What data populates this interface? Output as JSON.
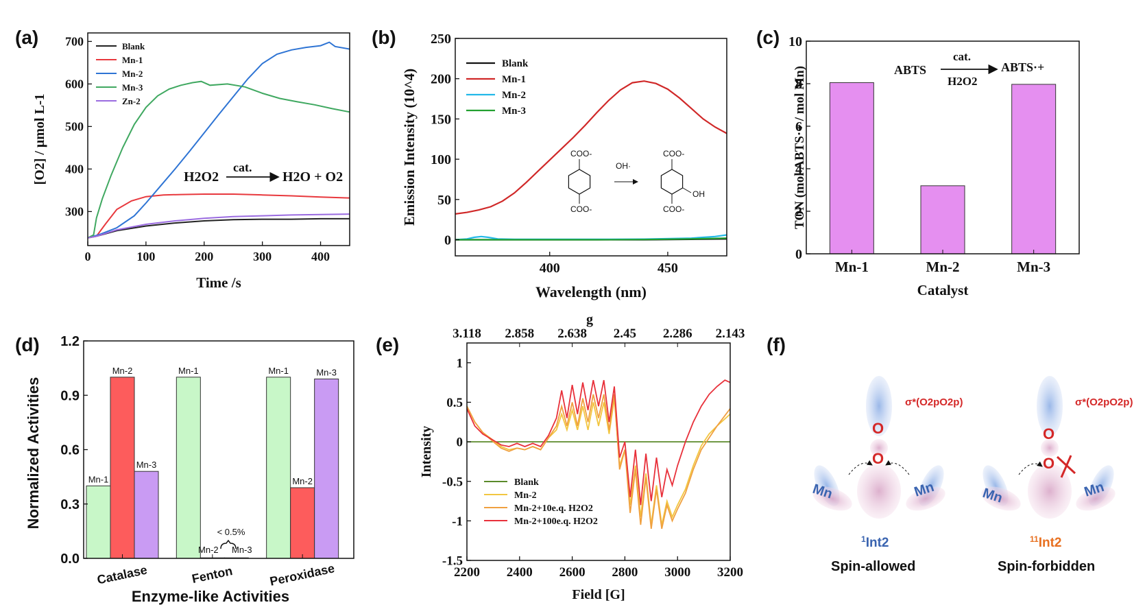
{
  "chart_data": [
    {
      "panel": "(a)",
      "type": "line",
      "xlabel": "Time /s",
      "ylabel": "[O2] / μmol L-1",
      "xlim": [
        0,
        450
      ],
      "ylim": [
        220,
        720
      ],
      "xticks": [
        0,
        100,
        200,
        300,
        400
      ],
      "yticks": [
        300,
        400,
        500,
        600,
        700
      ],
      "equation": {
        "left": "H2O2",
        "cat": "cat.",
        "right": "H2O + O2"
      },
      "legend_position": "top-left",
      "series": [
        {
          "name": "Blank",
          "color": "#222222",
          "x": [
            0,
            15,
            50,
            100,
            150,
            200,
            250,
            300,
            350,
            400,
            450
          ],
          "y": [
            238,
            242,
            255,
            266,
            273,
            278,
            281,
            282,
            282,
            283,
            283
          ]
        },
        {
          "name": "Mn-1",
          "color": "#e8383d",
          "x": [
            0,
            15,
            30,
            50,
            75,
            100,
            130,
            160,
            200,
            250,
            300,
            350,
            400,
            450
          ],
          "y": [
            238,
            242,
            270,
            305,
            325,
            335,
            339,
            340,
            341,
            341,
            339,
            337,
            334,
            332
          ]
        },
        {
          "name": "Mn-2",
          "color": "#2e74d4",
          "x": [
            0,
            20,
            50,
            80,
            100,
            125,
            150,
            175,
            200,
            225,
            250,
            275,
            300,
            325,
            350,
            375,
            400,
            415,
            425,
            450
          ],
          "y": [
            238,
            246,
            262,
            290,
            320,
            360,
            400,
            442,
            485,
            528,
            570,
            612,
            648,
            670,
            680,
            686,
            690,
            698,
            688,
            682
          ]
        },
        {
          "name": "Mn-3",
          "color": "#3fa860",
          "x": [
            0,
            10,
            15,
            25,
            40,
            60,
            80,
            100,
            120,
            140,
            160,
            180,
            195,
            210,
            240,
            270,
            300,
            330,
            360,
            390,
            420,
            450
          ],
          "y": [
            238,
            245,
            285,
            330,
            385,
            450,
            505,
            545,
            572,
            588,
            597,
            603,
            606,
            597,
            600,
            593,
            578,
            566,
            558,
            551,
            542,
            534
          ]
        },
        {
          "name": "Zn-2",
          "color": "#9a6be0",
          "x": [
            0,
            15,
            50,
            100,
            150,
            200,
            250,
            300,
            350,
            400,
            450
          ],
          "y": [
            238,
            242,
            257,
            270,
            278,
            284,
            288,
            290,
            292,
            293,
            294
          ]
        }
      ]
    },
    {
      "panel": "(b)",
      "type": "line",
      "xlabel": "Wavelength (nm)",
      "ylabel": "Emission Intensity (10^4)",
      "xlim": [
        360,
        475
      ],
      "ylim": [
        -20,
        250
      ],
      "xticks": [
        400,
        450
      ],
      "yticks": [
        0,
        50,
        100,
        150,
        200,
        250
      ],
      "legend_position": "top-left",
      "reaction_labels": {
        "top_group": "COO-",
        "bottom_group": "COO-",
        "reagent": "OH·",
        "product_top": "COO-",
        "product_bottom": "COO-",
        "product_side": "OH"
      },
      "series": [
        {
          "name": "Blank",
          "color": "#111111",
          "x": [
            360,
            380,
            400,
            420,
            440,
            460,
            475
          ],
          "y": [
            0,
            0,
            0,
            0,
            0,
            0.5,
            1
          ]
        },
        {
          "name": "Mn-1",
          "color": "#d02828",
          "x": [
            360,
            365,
            370,
            375,
            380,
            385,
            390,
            395,
            400,
            405,
            410,
            415,
            420,
            425,
            430,
            435,
            440,
            445,
            450,
            455,
            460,
            465,
            470,
            475
          ],
          "y": [
            32,
            34,
            37,
            41,
            48,
            58,
            71,
            85,
            99,
            113,
            127,
            142,
            158,
            173,
            186,
            195,
            197,
            194,
            187,
            176,
            163,
            150,
            140,
            132
          ]
        },
        {
          "name": "Mn-2",
          "color": "#22b8e8",
          "x": [
            360,
            365,
            368,
            371,
            374,
            378,
            385,
            400,
            420,
            440,
            460,
            470,
            475
          ],
          "y": [
            0,
            1,
            3,
            4,
            3,
            1,
            0.5,
            0.5,
            0.5,
            0.8,
            2,
            4,
            6
          ]
        },
        {
          "name": "Mn-3",
          "color": "#22a030",
          "x": [
            360,
            380,
            400,
            420,
            440,
            460,
            475
          ],
          "y": [
            0,
            0,
            0,
            0,
            0.3,
            1,
            2
          ]
        }
      ]
    },
    {
      "panel": "(c)",
      "type": "bar",
      "xlabel": "Catalyst",
      "ylabel": "TON (mol ABTS·+ / mol Mn)",
      "ylim": [
        0,
        10
      ],
      "yticks": [
        0,
        2,
        4,
        6,
        8,
        10
      ],
      "categories": [
        "Mn-1",
        "Mn-2",
        "Mn-3"
      ],
      "values": [
        8.05,
        3.2,
        7.97
      ],
      "bar_color": "#e58ff0",
      "equation": {
        "left": "ABTS",
        "cat": "cat.",
        "reagent": "H2O2",
        "right": "ABTS·+"
      }
    },
    {
      "panel": "(d)",
      "type": "bar",
      "xlabel": "Enzyme-like Activities",
      "ylabel": "Normalized Activities",
      "ylim": [
        0,
        1.2
      ],
      "yticks": [
        "0.0",
        "0.3",
        "0.6",
        "0.9",
        "1.2"
      ],
      "categories": [
        "Catalase",
        "Fenton",
        "Peroxidase"
      ],
      "series": [
        {
          "name": "Mn-1",
          "color": "#c8f7c8",
          "values": [
            0.4,
            1.0,
            1.0
          ]
        },
        {
          "name": "Mn-2",
          "color": "#fd5c5c",
          "values": [
            1.0,
            0.003,
            0.39
          ]
        },
        {
          "name": "Mn-3",
          "color": "#c99bf3",
          "values": [
            0.48,
            0.003,
            0.99
          ]
        }
      ],
      "annotation": "< 0.5%"
    },
    {
      "panel": "(e)",
      "type": "line",
      "xlabel": "Field [G]",
      "ylabel": "Intensity",
      "top_axis_label": "g",
      "top_ticks": [
        "3.118",
        "2.858",
        "2.638",
        "2.45",
        "2.286",
        "2.143"
      ],
      "xlim": [
        2200,
        3200
      ],
      "ylim": [
        -1.5,
        1.25
      ],
      "xticks": [
        2200,
        2400,
        2600,
        2800,
        3000,
        3200
      ],
      "yticks": [
        "-1.5",
        "-1",
        "-0.5",
        "0",
        "0.5",
        "1"
      ],
      "legend_position": "bottom-left",
      "series": [
        {
          "name": "Blank",
          "color": "#5a8a2a",
          "x": [
            2200,
            3200
          ],
          "y": [
            0,
            0
          ]
        },
        {
          "name": "Mn-2",
          "color": "#f2c640",
          "x": [
            2200,
            2230,
            2260,
            2300,
            2330,
            2360,
            2390,
            2420,
            2450,
            2480,
            2510,
            2540,
            2560,
            2580,
            2600,
            2620,
            2640,
            2660,
            2680,
            2700,
            2720,
            2740,
            2760,
            2780,
            2800,
            2820,
            2840,
            2860,
            2880,
            2900,
            2920,
            2940,
            2960,
            2980,
            3000,
            3030,
            3060,
            3090,
            3120,
            3150,
            3200
          ],
          "y": [
            0.45,
            0.25,
            0.12,
            0.02,
            -0.06,
            -0.1,
            -0.08,
            -0.1,
            -0.06,
            -0.1,
            0.05,
            0.15,
            0.35,
            0.15,
            0.4,
            0.15,
            0.45,
            0.15,
            0.5,
            0.2,
            0.5,
            0.1,
            0.55,
            -0.3,
            -0.1,
            -0.8,
            -0.3,
            -0.95,
            -0.4,
            -1.05,
            -0.55,
            -1.05,
            -0.75,
            -0.95,
            -0.8,
            -0.6,
            -0.3,
            -0.05,
            0.1,
            0.2,
            0.35
          ]
        },
        {
          "name": "Mn-2+10e.q. H2O2",
          "color": "#f0a040",
          "x": [
            2200,
            2230,
            2260,
            2300,
            2330,
            2360,
            2390,
            2420,
            2450,
            2480,
            2510,
            2540,
            2560,
            2580,
            2600,
            2620,
            2640,
            2660,
            2680,
            2700,
            2720,
            2740,
            2760,
            2780,
            2800,
            2820,
            2840,
            2860,
            2880,
            2900,
            2920,
            2940,
            2960,
            2980,
            3000,
            3030,
            3060,
            3090,
            3120,
            3150,
            3200
          ],
          "y": [
            0.45,
            0.25,
            0.12,
            0.0,
            -0.08,
            -0.12,
            -0.08,
            -0.1,
            -0.06,
            -0.1,
            0.05,
            0.2,
            0.45,
            0.2,
            0.5,
            0.2,
            0.55,
            0.25,
            0.6,
            0.3,
            0.6,
            0.15,
            0.6,
            -0.35,
            -0.1,
            -0.9,
            -0.35,
            -1.05,
            -0.45,
            -1.1,
            -0.6,
            -1.1,
            -0.8,
            -1.0,
            -0.85,
            -0.65,
            -0.35,
            -0.1,
            0.05,
            0.2,
            0.42
          ]
        },
        {
          "name": "Mn-2+100e.q. H2O2",
          "color": "#e8303a",
          "x": [
            2200,
            2230,
            2260,
            2300,
            2330,
            2360,
            2390,
            2420,
            2450,
            2480,
            2510,
            2540,
            2560,
            2580,
            2600,
            2620,
            2640,
            2660,
            2680,
            2700,
            2720,
            2740,
            2760,
            2780,
            2800,
            2820,
            2840,
            2860,
            2880,
            2900,
            2920,
            2940,
            2960,
            2980,
            3000,
            3030,
            3060,
            3090,
            3120,
            3150,
            3180,
            3200
          ],
          "y": [
            0.42,
            0.2,
            0.1,
            0.02,
            -0.04,
            -0.06,
            -0.02,
            -0.06,
            -0.02,
            -0.06,
            0.08,
            0.3,
            0.65,
            0.3,
            0.72,
            0.35,
            0.75,
            0.4,
            0.78,
            0.45,
            0.78,
            0.25,
            0.7,
            -0.2,
            0.0,
            -0.7,
            -0.1,
            -0.8,
            -0.15,
            -0.75,
            -0.2,
            -0.7,
            -0.35,
            -0.55,
            -0.3,
            0.0,
            0.25,
            0.45,
            0.6,
            0.7,
            0.78,
            0.75
          ]
        }
      ]
    }
  ],
  "panels": {
    "a": "(a)",
    "b": "(b)",
    "c": "(c)",
    "d": "(d)",
    "e": "(e)",
    "f": "(f)"
  },
  "panel_f": {
    "sigma_label": "σ*(O2pO2p)",
    "o_label": "O",
    "mn_label": "Mn",
    "left_state": "1Int2",
    "left_state_sup": "1",
    "left_state_main": "Int2",
    "right_state_sup": "11",
    "right_state_main": "Int2",
    "left_caption": "Spin-allowed",
    "right_caption": "Spin-forbidden",
    "colors": {
      "mn_blue": "#3a64b0",
      "o_red": "#d42828",
      "right_state": "#e87020",
      "left_state": "#3a64b0"
    }
  }
}
